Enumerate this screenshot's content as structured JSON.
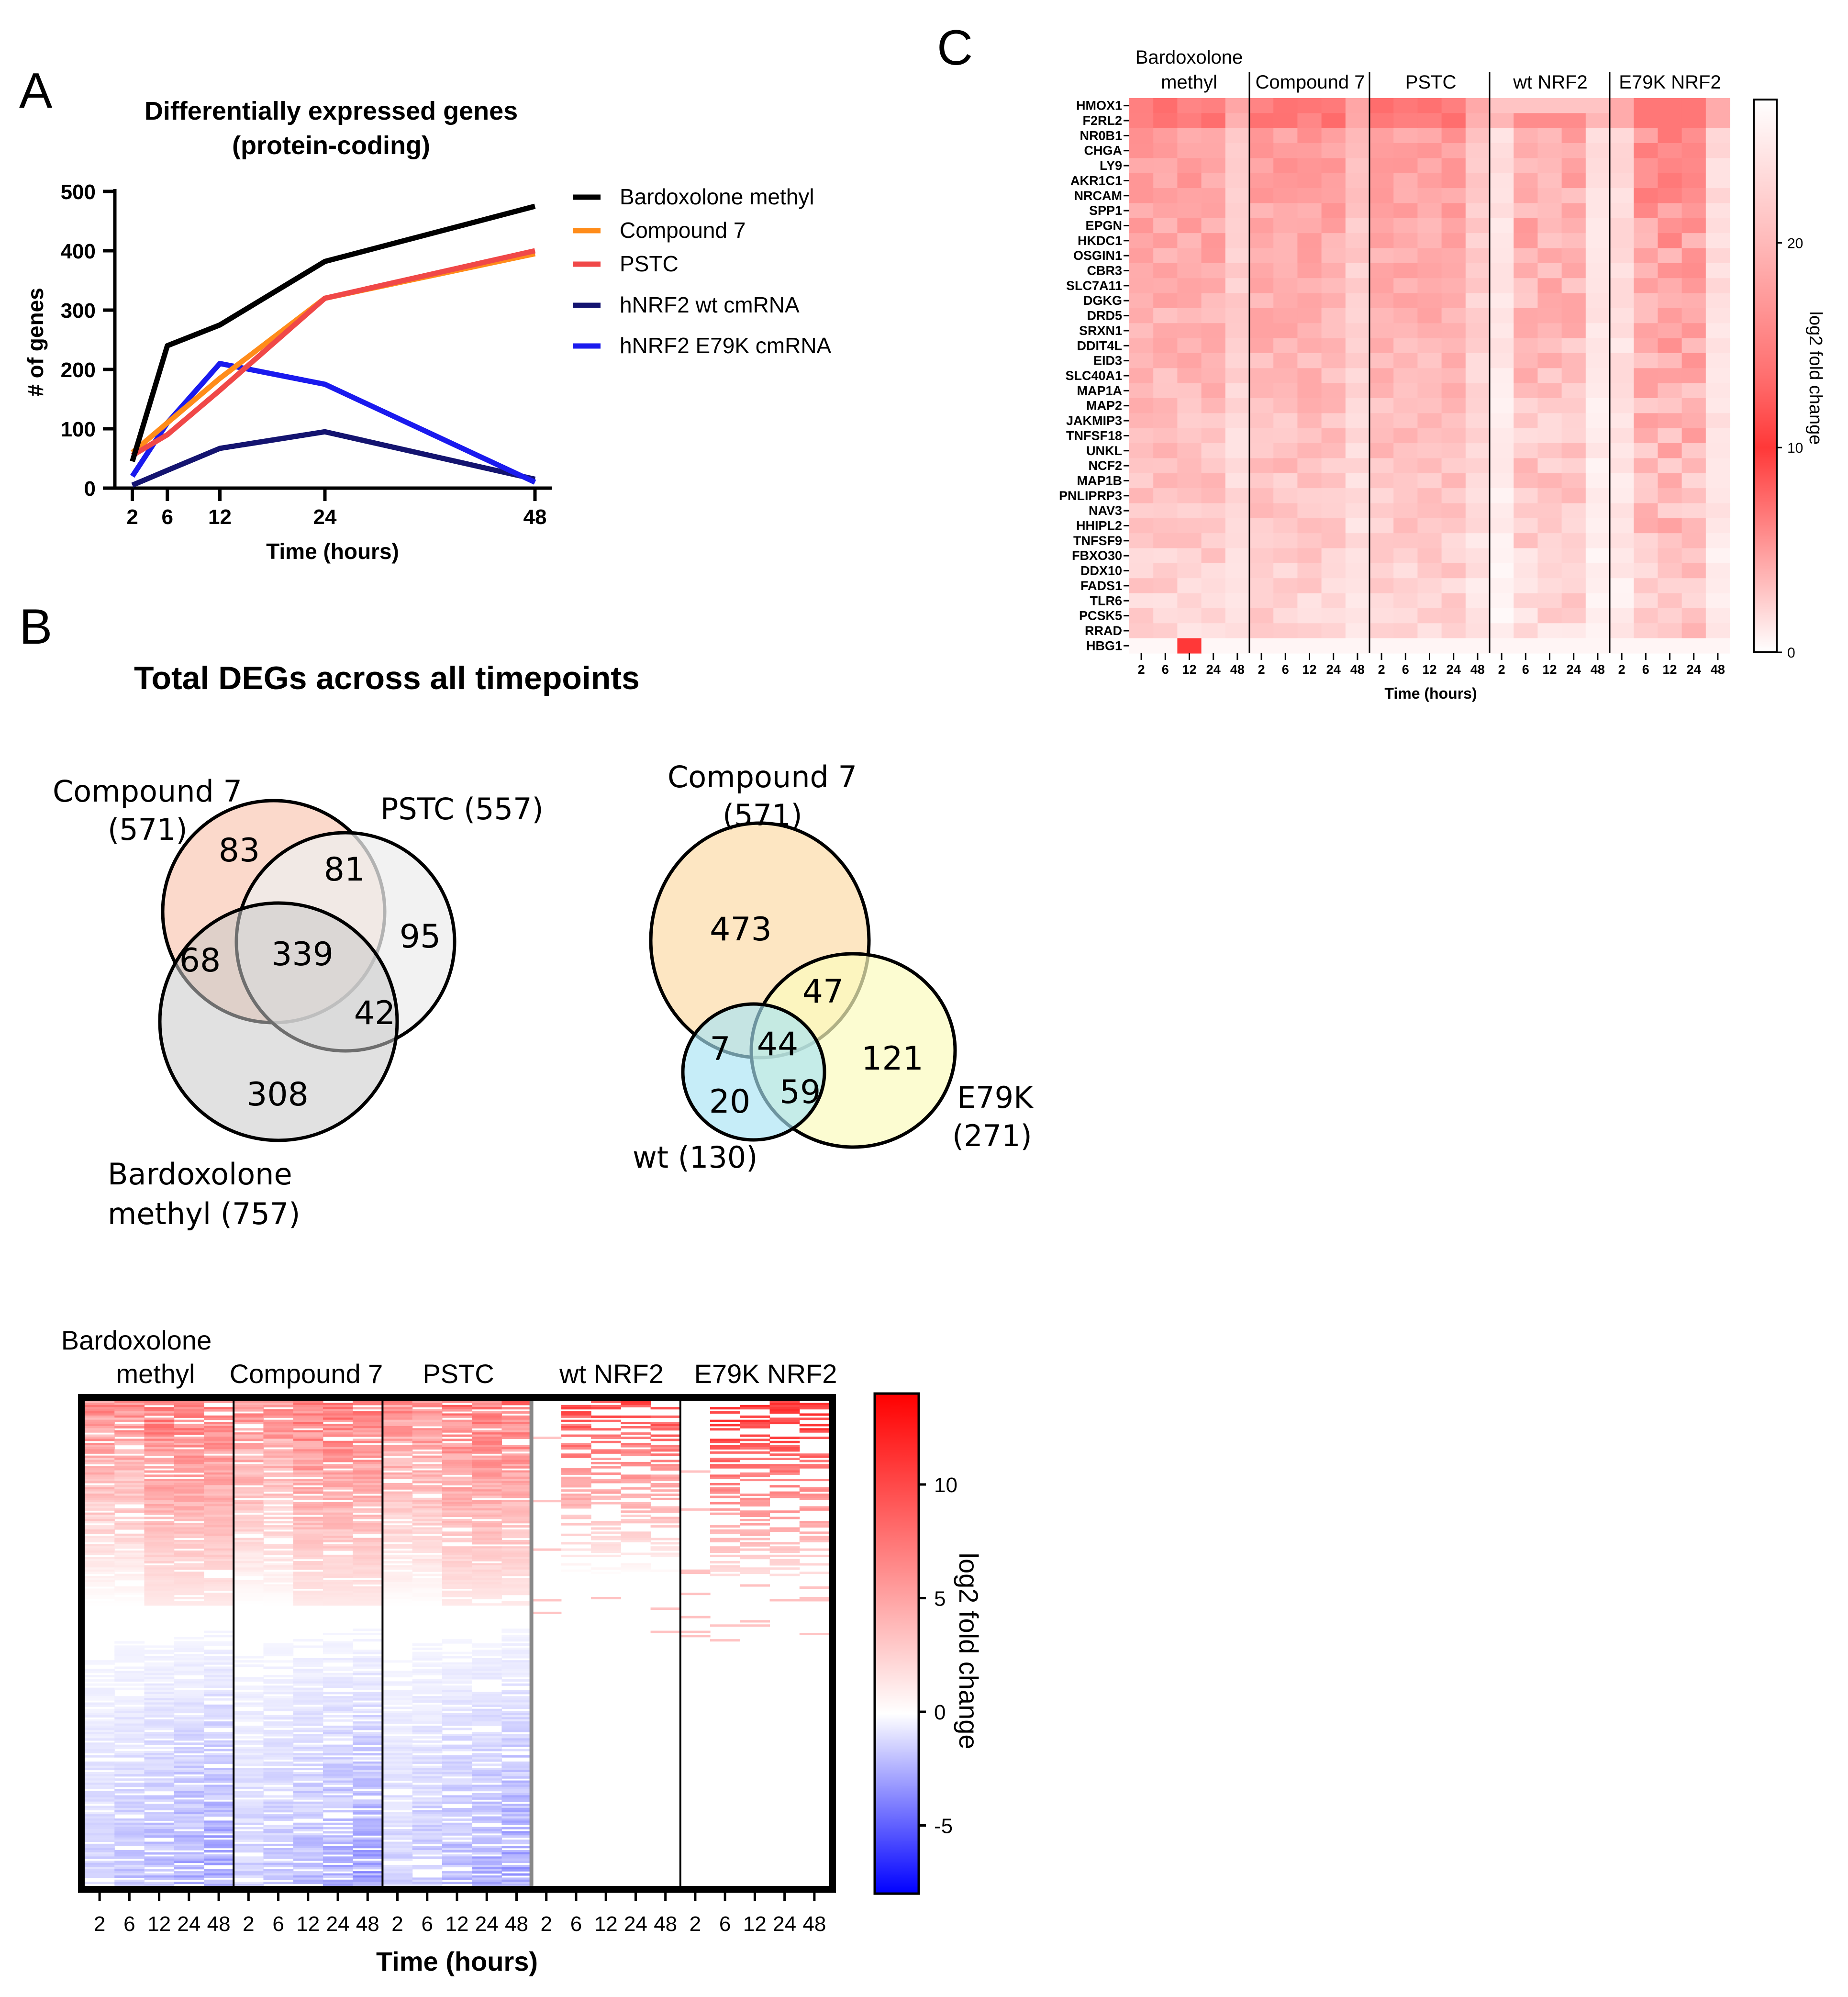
{
  "panels": {
    "A": "A",
    "B": "B",
    "C": "C"
  },
  "colors": {
    "bardoxolone": "#000000",
    "compound7": "#ff8c1a",
    "pstc": "#f04848",
    "wt": "#141470",
    "e79k": "#1a1aee",
    "venn_c7_a": "#fbd9cb",
    "venn_pstc_a": "#eeeeee",
    "venn_bard_a": "#c8c8c8",
    "venn_c7_b": "#fde6c2",
    "venn_e79k_b": "#fbfbbd",
    "venn_wt_b": "#a8e4f4"
  },
  "chart_data": [
    {
      "id": "A",
      "type": "line",
      "title": [
        "Differentially expressed genes",
        "(protein-coding)"
      ],
      "xlabel": "Time (hours)",
      "ylabel": "# of genes",
      "x": [
        2,
        6,
        12,
        24,
        48
      ],
      "xlim": [
        0,
        48
      ],
      "ylim": [
        0,
        500
      ],
      "yticks": [
        0,
        100,
        200,
        300,
        400,
        500
      ],
      "series": [
        {
          "name": "Bardoxolone methyl",
          "key": "bardoxolone",
          "values": [
            45,
            240,
            275,
            382,
            475
          ]
        },
        {
          "name": "Compound 7",
          "key": "compound7",
          "values": [
            60,
            110,
            185,
            320,
            395
          ]
        },
        {
          "name": "PSTC",
          "key": "pstc",
          "values": [
            55,
            90,
            165,
            320,
            400
          ]
        },
        {
          "name": "hNRF2 wt cmRNA",
          "key": "wt",
          "values": [
            5,
            30,
            67,
            95,
            15
          ]
        },
        {
          "name": "hNRF2 E79K cmRNA",
          "key": "e79k",
          "values": [
            20,
            110,
            210,
            175,
            10
          ]
        }
      ]
    },
    {
      "id": "B-venn-1",
      "type": "venn",
      "title": "Total DEGs across all timepoints",
      "sets": [
        {
          "key": "c7",
          "label": [
            "Compound 7",
            "(571)"
          ]
        },
        {
          "key": "pstc",
          "label": [
            "PSTC (557)"
          ]
        },
        {
          "key": "bard",
          "label": [
            "Bardoxolone",
            "methyl (757)"
          ]
        }
      ],
      "regions": [
        {
          "sets": [
            "c7"
          ],
          "value": "83"
        },
        {
          "sets": [
            "c7",
            "pstc"
          ],
          "value": "81"
        },
        {
          "sets": [
            "pstc"
          ],
          "value": "95"
        },
        {
          "sets": [
            "c7",
            "bard"
          ],
          "value": "68"
        },
        {
          "sets": [
            "c7",
            "pstc",
            "bard"
          ],
          "value": "339"
        },
        {
          "sets": [
            "pstc",
            "bard"
          ],
          "value": "42"
        },
        {
          "sets": [
            "bard"
          ],
          "value": "308"
        }
      ]
    },
    {
      "id": "B-venn-2",
      "type": "venn",
      "sets": [
        {
          "key": "c7",
          "label": [
            "Compound 7",
            "(571)"
          ]
        },
        {
          "key": "e79k",
          "label": [
            "E79K",
            "(271)"
          ]
        },
        {
          "key": "wt",
          "label": [
            "wt (130)"
          ]
        }
      ],
      "regions": [
        {
          "sets": [
            "c7"
          ],
          "value": "473"
        },
        {
          "sets": [
            "c7",
            "e79k"
          ],
          "value": "47"
        },
        {
          "sets": [
            "c7",
            "wt"
          ],
          "value": "7"
        },
        {
          "sets": [
            "c7",
            "e79k",
            "wt"
          ],
          "value": "44"
        },
        {
          "sets": [
            "e79k"
          ],
          "value": "121"
        },
        {
          "sets": [
            "wt"
          ],
          "value": "20"
        },
        {
          "sets": [
            "e79k",
            "wt"
          ],
          "value": "59"
        }
      ]
    },
    {
      "id": "B-heatmap",
      "type": "heatmap",
      "groups": [
        {
          "key": "bard",
          "label": [
            "Bardoxolone",
            "methyl"
          ]
        },
        {
          "key": "c7",
          "label": [
            "Compound 7"
          ]
        },
        {
          "key": "pstc",
          "label": [
            "PSTC"
          ]
        },
        {
          "key": "wt",
          "label": [
            "wt NRF2"
          ]
        },
        {
          "key": "e79k",
          "label": [
            "E79K NRF2"
          ]
        }
      ],
      "x": [
        2,
        6,
        12,
        24,
        48
      ],
      "xlabel": "Time (hours)",
      "colorbar": {
        "label": "log2 fold change",
        "ticks": [
          10,
          5,
          0,
          -5
        ],
        "range": [
          -8,
          14
        ]
      }
    },
    {
      "id": "C",
      "type": "heatmap",
      "groups": [
        {
          "key": "bard",
          "label": [
            "Bardoxolone",
            "methyl"
          ]
        },
        {
          "key": "c7",
          "label": [
            "Compound 7"
          ]
        },
        {
          "key": "pstc",
          "label": [
            "PSTC"
          ]
        },
        {
          "key": "wt",
          "label": [
            "wt NRF2"
          ]
        },
        {
          "key": "e79k",
          "label": [
            "E79K NRF2"
          ]
        }
      ],
      "x": [
        2,
        6,
        12,
        24,
        48
      ],
      "xlabel": "Time (hours)",
      "genes": [
        "HMOX1",
        "F2RL2",
        "NR0B1",
        "CHGA",
        "LY9",
        "AKR1C1",
        "NRCAM",
        "SPP1",
        "EPGN",
        "HKDC1",
        "OSGIN1",
        "CBR3",
        "SLC7A11",
        "DGKG",
        "DRD5",
        "SRXN1",
        "DDIT4L",
        "EID3",
        "SLC40A1",
        "MAP1A",
        "MAP2",
        "JAKMIP3",
        "TNFSF18",
        "UNKL",
        "NCF2",
        "MAP1B",
        "PNLIPRP3",
        "NAV3",
        "HHIPL2",
        "TNFSF9",
        "FBXO30",
        "DDX10",
        "FADS1",
        "TLR6",
        "PCSK5",
        "RRAD",
        "HBG1"
      ],
      "colorbar": {
        "label": "log2 fold change",
        "ticks": [
          20,
          10,
          0
        ],
        "range": [
          0,
          27
        ]
      }
    }
  ]
}
